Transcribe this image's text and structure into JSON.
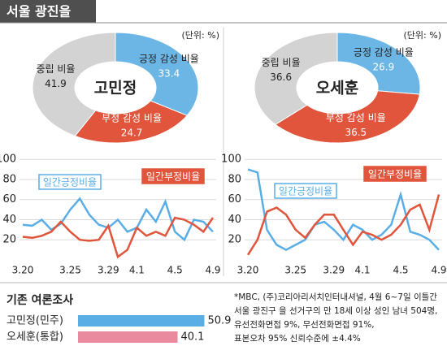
{
  "header": {
    "title": "서울 광진을"
  },
  "chart_data": [
    {
      "type": "donut",
      "center_label": "고민정",
      "unit": "(단위: %)",
      "categories": [
        "긍정 감성 비율",
        "부정 감성 비율",
        "중립 비율"
      ],
      "values": [
        33.4,
        24.7,
        41.9
      ],
      "colors": [
        "#6cb6e6",
        "#e0553b",
        "#d3d3d3"
      ]
    },
    {
      "type": "donut",
      "center_label": "오세훈",
      "unit": "(단위: %)",
      "categories": [
        "긍정 감성 비율",
        "부정 감성 비율",
        "중립 비율"
      ],
      "values": [
        26.9,
        36.5,
        36.6
      ],
      "colors": [
        "#6cb6e6",
        "#e0553b",
        "#d3d3d3"
      ]
    },
    {
      "type": "line",
      "categories": [
        "3.20",
        null,
        null,
        null,
        null,
        "3.25",
        null,
        null,
        null,
        "3.29",
        null,
        null,
        "4.1",
        null,
        null,
        null,
        "4.5",
        null,
        null,
        null,
        "4.9"
      ],
      "series": [
        {
          "name": "일간긍정비율",
          "color": "#5aaee6",
          "values": [
            35,
            34,
            40,
            30,
            36,
            50,
            61,
            45,
            35,
            32,
            40,
            28,
            32,
            50,
            38,
            58,
            28,
            20,
            40,
            38,
            28
          ]
        },
        {
          "name": "일간부정비율",
          "color": "#e0553b",
          "values": [
            23,
            22,
            24,
            28,
            38,
            28,
            20,
            19,
            20,
            34,
            3,
            10,
            32,
            24,
            28,
            24,
            42,
            40,
            35,
            28,
            42
          ]
        }
      ],
      "ylim": [
        0,
        105
      ],
      "yticks": [
        20,
        40,
        60,
        80,
        100
      ],
      "grid": true
    },
    {
      "type": "line",
      "categories": [
        "3.20",
        null,
        null,
        null,
        null,
        "3.25",
        null,
        null,
        null,
        "3.29",
        null,
        null,
        "4.1",
        null,
        null,
        null,
        "4.5",
        null,
        null,
        null,
        "4.9"
      ],
      "series": [
        {
          "name": "일간긍정비율",
          "color": "#5aaee6",
          "values": [
            90,
            87,
            30,
            15,
            10,
            15,
            20,
            35,
            38,
            30,
            20,
            35,
            30,
            20,
            25,
            35,
            65,
            28,
            25,
            20,
            10
          ]
        },
        {
          "name": "일간부정비율",
          "color": "#e0553b",
          "values": [
            5,
            20,
            48,
            52,
            45,
            30,
            22,
            35,
            45,
            45,
            30,
            15,
            28,
            25,
            20,
            25,
            35,
            50,
            55,
            30,
            65
          ]
        }
      ],
      "ylim": [
        0,
        105
      ],
      "yticks": [
        20,
        40,
        60,
        80,
        100
      ],
      "grid": true
    },
    {
      "type": "hbar",
      "title": "기존 여론조사",
      "categories": [
        "고민정(민주)",
        "오세훈(통합)"
      ],
      "values": [
        50.9,
        40.1
      ],
      "colors": [
        "#5aaee6",
        "#e98a9e"
      ],
      "xlim": [
        0,
        55
      ]
    }
  ],
  "note": [
    "*MBC, (주)코리아리서치인터내셔널, 4월 6~7일 이틀간",
    "서울 광진구 을 선거구의 만 18세 이상 성인 남녀 504명,",
    "유선전화면접 9%, 무선전화면접 91%,",
    "표본오차 95% 신뢰수준에 ±4.4%"
  ]
}
